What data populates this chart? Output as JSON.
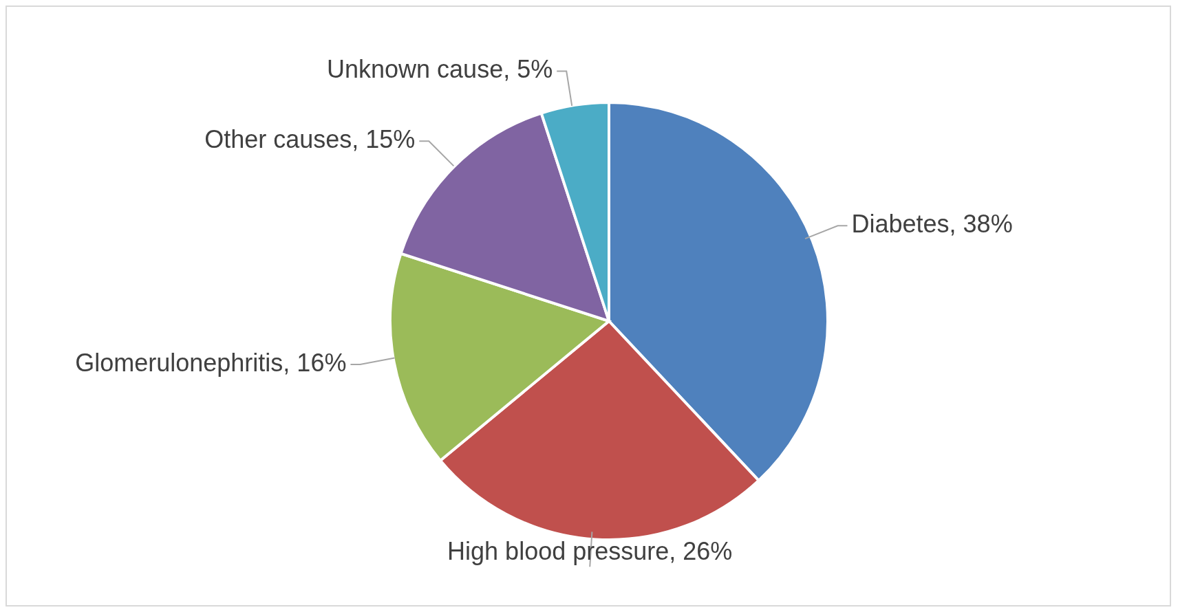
{
  "chart_data": {
    "type": "pie",
    "categories": [
      "Diabetes",
      "High blood pressure",
      "Glomerulonephritis",
      "Other causes",
      "Unknown cause"
    ],
    "values": [
      38,
      26,
      16,
      15,
      5
    ],
    "value_labels": [
      "38%",
      "26%",
      "16%",
      "15%",
      "5%"
    ],
    "colors": [
      "#4f81bd",
      "#c0504d",
      "#9bbb59",
      "#8064a2",
      "#4bacc6"
    ],
    "legend": false
  }
}
